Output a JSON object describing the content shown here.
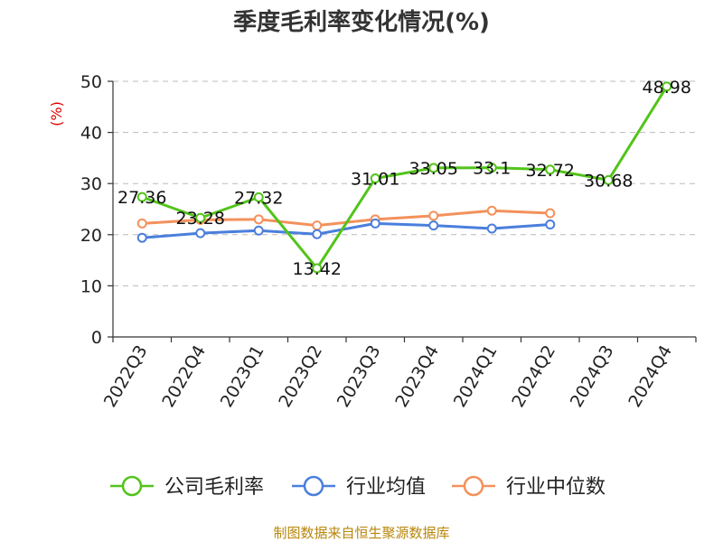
{
  "chart_data": {
    "type": "line",
    "title": "季度毛利率变化情况(%)",
    "ylabel": "(%)",
    "xlabel": "",
    "ylim": [
      0,
      50
    ],
    "yticks": [
      0,
      10,
      20,
      30,
      40,
      50
    ],
    "grid": true,
    "legend_position": "bottom",
    "categories": [
      "2022Q3",
      "2022Q4",
      "2023Q1",
      "2023Q2",
      "2023Q3",
      "2023Q4",
      "2024Q1",
      "2024Q2",
      "2024Q3",
      "2024Q4"
    ],
    "series": [
      {
        "name": "公司毛利率",
        "color": "#52c41a",
        "values": [
          27.36,
          23.28,
          27.32,
          13.42,
          31.01,
          33.05,
          33.1,
          32.72,
          30.68,
          48.98
        ],
        "labels": [
          "27.36",
          "23.28",
          "27.32",
          "13.42",
          "31.01",
          "33.05",
          "33.1",
          "32.72",
          "30.68",
          "48.98"
        ]
      },
      {
        "name": "行业均值",
        "color": "#4a7fdc",
        "values": [
          19.4,
          20.3,
          20.8,
          20.1,
          22.2,
          21.8,
          21.2,
          22.0,
          null,
          null
        ]
      },
      {
        "name": "行业中位数",
        "color": "#f4915b",
        "values": [
          22.2,
          22.9,
          23.0,
          21.8,
          23.0,
          23.7,
          24.7,
          24.2,
          null,
          null
        ]
      }
    ]
  },
  "source": "制图数据来自恒生聚源数据库"
}
